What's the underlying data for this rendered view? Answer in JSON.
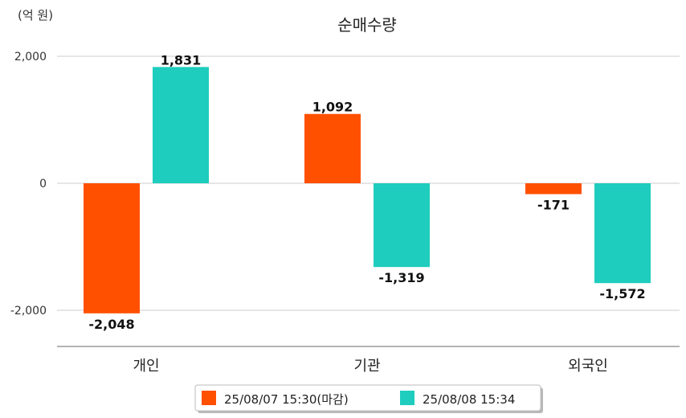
{
  "chart_data": {
    "type": "bar",
    "title": "순매수량",
    "unit_label": "(억 원)",
    "categories": [
      "개인",
      "기관",
      "외국인"
    ],
    "series": [
      {
        "name": "25/08/07 15:30(마감)",
        "color": "#ff5000",
        "values": [
          -2048,
          1092,
          -171
        ],
        "value_labels": [
          "-2,048",
          "1,092",
          "-171"
        ]
      },
      {
        "name": "25/08/08 15:34",
        "color": "#1ecdbd",
        "values": [
          1831,
          -1319,
          -1572
        ],
        "value_labels": [
          "1,831",
          "-1,319",
          "-1,572"
        ]
      }
    ],
    "y_ticks": [
      2000,
      0,
      -2000
    ],
    "y_tick_labels": [
      "2,000",
      "0",
      "-2,000"
    ],
    "ylim": [
      -2580,
      2000
    ],
    "grid": true,
    "legend_position": "bottom-center"
  }
}
